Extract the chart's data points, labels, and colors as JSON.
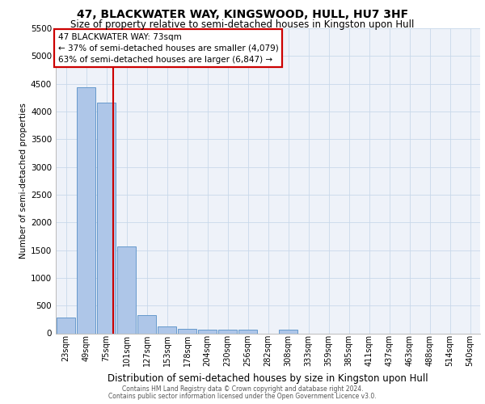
{
  "title": "47, BLACKWATER WAY, KINGSWOOD, HULL, HU7 3HF",
  "subtitle": "Size of property relative to semi-detached houses in Kingston upon Hull",
  "xlabel": "Distribution of semi-detached houses by size in Kingston upon Hull",
  "ylabel": "Number of semi-detached properties",
  "footnote1": "Contains HM Land Registry data © Crown copyright and database right 2024.",
  "footnote2": "Contains public sector information licensed under the Open Government Licence v3.0.",
  "annotation_line1": "47 BLACKWATER WAY: 73sqm",
  "annotation_line2": "← 37% of semi-detached houses are smaller (4,079)",
  "annotation_line3": "63% of semi-detached houses are larger (6,847) →",
  "bar_labels": [
    "23sqm",
    "49sqm",
    "75sqm",
    "101sqm",
    "127sqm",
    "153sqm",
    "178sqm",
    "204sqm",
    "230sqm",
    "256sqm",
    "282sqm",
    "308sqm",
    "333sqm",
    "359sqm",
    "385sqm",
    "411sqm",
    "437sqm",
    "463sqm",
    "488sqm",
    "514sqm",
    "540sqm"
  ],
  "bar_values": [
    280,
    4440,
    4160,
    1560,
    330,
    125,
    80,
    65,
    60,
    60,
    0,
    65,
    0,
    0,
    0,
    0,
    0,
    0,
    0,
    0,
    0
  ],
  "bar_color": "#aec6e8",
  "bar_edge_color": "#6699cc",
  "vline_color": "#cc0000",
  "ylim_max": 5500,
  "yticks": [
    0,
    500,
    1000,
    1500,
    2000,
    2500,
    3000,
    3500,
    4000,
    4500,
    5000,
    5500
  ],
  "annotation_box_edge_color": "#cc0000",
  "background_color": "#eef2f9",
  "grid_color": "#c8d8ea",
  "title_fontsize": 10,
  "subtitle_fontsize": 8.5,
  "ylabel_fontsize": 7.5,
  "xlabel_fontsize": 8.5,
  "tick_fontsize": 7,
  "ytick_fontsize": 7.5,
  "footnote_fontsize": 5.5,
  "annotation_fontsize": 7.5
}
